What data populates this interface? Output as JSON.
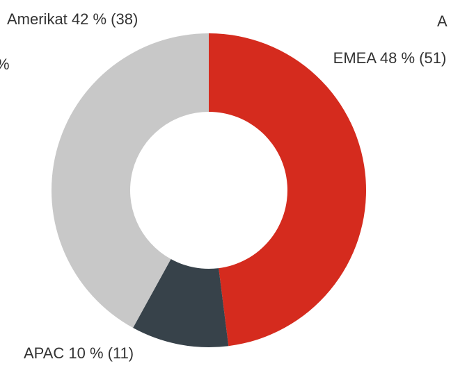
{
  "chart_data": {
    "type": "pie",
    "categories": [
      "EMEA",
      "APAC",
      "Amerikat"
    ],
    "values": [
      48,
      10,
      42
    ],
    "value_labels": [
      "EMEA 48 % (51)",
      "APAC 10 % (11)",
      "Amerikat 42 % (38)"
    ],
    "colors": [
      "#d52b1e",
      "#37424a",
      "#c8c8c8"
    ],
    "donut": true,
    "clipped_texts": [
      "A",
      "%"
    ]
  }
}
